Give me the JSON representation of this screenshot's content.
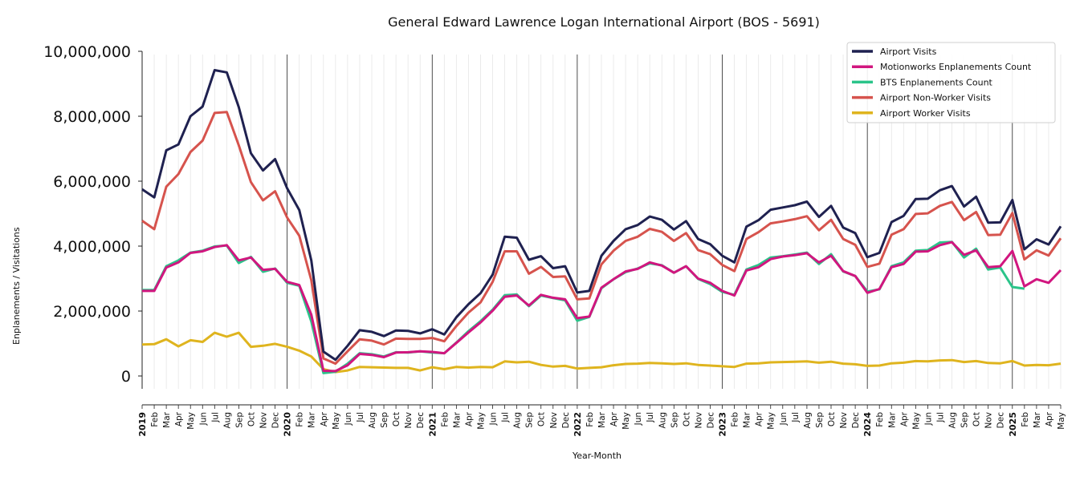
{
  "chart_data": {
    "type": "line",
    "title": "General Edward Lawrence Logan International Airport (BOS - 5691)",
    "xlabel": "Year-Month",
    "ylabel": "Enplanements / Visitations",
    "ylim": [
      0,
      10000000
    ],
    "yticks": [
      "0",
      "2,000,000",
      "4,000,000",
      "6,000,000",
      "8,000,000",
      "10,000,000"
    ],
    "start": "2019-01",
    "months": [
      "Jan",
      "Feb",
      "Mar",
      "Apr",
      "May",
      "Jun",
      "Jul",
      "Aug",
      "Sep",
      "Oct",
      "Nov",
      "Dec"
    ],
    "years": [
      "2019",
      "2020",
      "2021",
      "2022",
      "2023",
      "2024",
      "2025"
    ],
    "grid": "vertical month lines",
    "legend_position": "top-right",
    "series": [
      {
        "name": "Airport Visits",
        "color": "#1f2150",
        "values": [
          5750000,
          5500000,
          6950000,
          7130000,
          8000000,
          8300000,
          9420000,
          9350000,
          8280000,
          6860000,
          6330000,
          6680000,
          5780000,
          5110000,
          3560000,
          750000,
          500000,
          930000,
          1410000,
          1360000,
          1230000,
          1400000,
          1390000,
          1310000,
          1440000,
          1280000,
          1810000,
          2210000,
          2550000,
          3120000,
          4290000,
          4260000,
          3580000,
          3690000,
          3320000,
          3380000,
          2570000,
          2620000,
          3700000,
          4160000,
          4520000,
          4650000,
          4910000,
          4810000,
          4510000,
          4770000,
          4220000,
          4060000,
          3700000,
          3500000,
          4600000,
          4800000,
          5120000,
          5190000,
          5260000,
          5370000,
          4900000,
          5240000,
          4570000,
          4400000,
          3660000,
          3790000,
          4740000,
          4930000,
          5450000,
          5460000,
          5720000,
          5850000,
          5220000,
          5520000,
          4720000,
          4730000,
          5420000,
          3900000,
          4210000,
          4050000,
          4610000
        ]
      },
      {
        "name": "Motionworks Enplanements Count",
        "color": "#d1167f",
        "values": [
          2620000,
          2620000,
          3340000,
          3500000,
          3790000,
          3840000,
          3970000,
          4030000,
          3560000,
          3650000,
          3270000,
          3300000,
          2900000,
          2800000,
          1890000,
          160000,
          150000,
          330000,
          680000,
          650000,
          580000,
          720000,
          730000,
          760000,
          740000,
          700000,
          1020000,
          1340000,
          1650000,
          2010000,
          2440000,
          2480000,
          2170000,
          2500000,
          2410000,
          2360000,
          1780000,
          1830000,
          2720000,
          2980000,
          3220000,
          3300000,
          3500000,
          3400000,
          3180000,
          3380000,
          3000000,
          2870000,
          2620000,
          2480000,
          3250000,
          3350000,
          3600000,
          3680000,
          3720000,
          3780000,
          3500000,
          3700000,
          3230000,
          3080000,
          2560000,
          2680000,
          3350000,
          3450000,
          3830000,
          3840000,
          4030000,
          4120000,
          3730000,
          3870000,
          3350000,
          3380000,
          3850000,
          2760000,
          2980000,
          2870000,
          3260000
        ]
      },
      {
        "name": "BTS Enplanements Count",
        "color": "#2bc48a",
        "values": [
          2650000,
          2650000,
          3380000,
          3560000,
          3800000,
          3860000,
          3990000,
          4020000,
          3480000,
          3670000,
          3210000,
          3310000,
          2870000,
          2780000,
          1680000,
          90000,
          130000,
          380000,
          700000,
          670000,
          600000,
          730000,
          720000,
          760000,
          720000,
          700000,
          1030000,
          1380000,
          1690000,
          2040000,
          2490000,
          2510000,
          2150000,
          2480000,
          2400000,
          2330000,
          1700000,
          1820000,
          2700000,
          2980000,
          3200000,
          3310000,
          3470000,
          3410000,
          3180000,
          3380000,
          2990000,
          2830000,
          2590000,
          2500000,
          3280000,
          3420000,
          3650000,
          3690000,
          3740000,
          3800000,
          3450000,
          3750000,
          3220000,
          3080000,
          2600000,
          2670000,
          3380000,
          3500000,
          3860000,
          3880000,
          4110000,
          4130000,
          3650000,
          3920000,
          3280000,
          3340000,
          2740000,
          2690000
        ]
      },
      {
        "name": "Airport Non-Worker Visits",
        "color": "#d6534d",
        "values": [
          4780000,
          4520000,
          5830000,
          6220000,
          6900000,
          7250000,
          8100000,
          8130000,
          7100000,
          5970000,
          5410000,
          5690000,
          4880000,
          4320000,
          2950000,
          540000,
          380000,
          760000,
          1130000,
          1090000,
          970000,
          1150000,
          1140000,
          1140000,
          1170000,
          1070000,
          1540000,
          1950000,
          2270000,
          2900000,
          3840000,
          3840000,
          3150000,
          3360000,
          3050000,
          3070000,
          2360000,
          2390000,
          3440000,
          3860000,
          4160000,
          4290000,
          4530000,
          4440000,
          4160000,
          4400000,
          3880000,
          3750000,
          3420000,
          3230000,
          4220000,
          4430000,
          4700000,
          4760000,
          4830000,
          4920000,
          4490000,
          4810000,
          4220000,
          4040000,
          3360000,
          3460000,
          4350000,
          4520000,
          4990000,
          5010000,
          5240000,
          5360000,
          4800000,
          5050000,
          4340000,
          4350000,
          5020000,
          3590000,
          3870000,
          3710000,
          4240000
        ]
      },
      {
        "name": "Airport Worker Visits",
        "color": "#dfb41e",
        "values": [
          970000,
          980000,
          1130000,
          910000,
          1100000,
          1050000,
          1330000,
          1210000,
          1330000,
          900000,
          930000,
          990000,
          900000,
          780000,
          600000,
          210000,
          120000,
          170000,
          280000,
          270000,
          260000,
          250000,
          250000,
          170000,
          270000,
          210000,
          280000,
          260000,
          280000,
          270000,
          450000,
          420000,
          440000,
          340000,
          290000,
          310000,
          230000,
          250000,
          270000,
          330000,
          370000,
          380000,
          400000,
          390000,
          370000,
          390000,
          340000,
          320000,
          300000,
          280000,
          380000,
          390000,
          420000,
          430000,
          440000,
          450000,
          410000,
          440000,
          380000,
          360000,
          310000,
          320000,
          390000,
          410000,
          460000,
          450000,
          480000,
          490000,
          430000,
          460000,
          400000,
          390000,
          460000,
          320000,
          340000,
          330000,
          380000
        ]
      }
    ]
  }
}
